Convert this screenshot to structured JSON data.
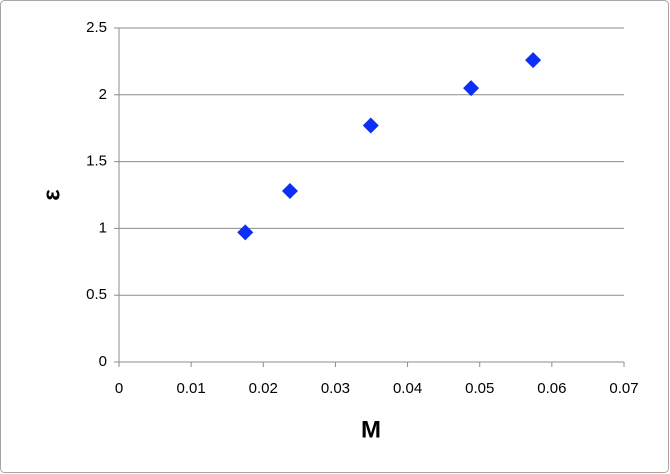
{
  "chart_data": {
    "type": "scatter",
    "x_label": "M",
    "y_label": "ε",
    "series": [
      {
        "color": "#0d2ff5",
        "x": [
          0.0175,
          0.0237,
          0.0349,
          0.0488,
          0.0574
        ],
        "values": [
          0.97,
          1.28,
          1.77,
          2.05,
          2.26
        ]
      }
    ],
    "xlim": [
      0,
      0.07
    ],
    "xticks": [
      0,
      0.01,
      0.02,
      0.03,
      0.04,
      0.05,
      0.06,
      0.07
    ],
    "ylim": [
      0,
      2.5
    ],
    "yticks": [
      0,
      0.5,
      1,
      1.5,
      2,
      2.5
    ],
    "grid": true,
    "marker": "diamond"
  }
}
